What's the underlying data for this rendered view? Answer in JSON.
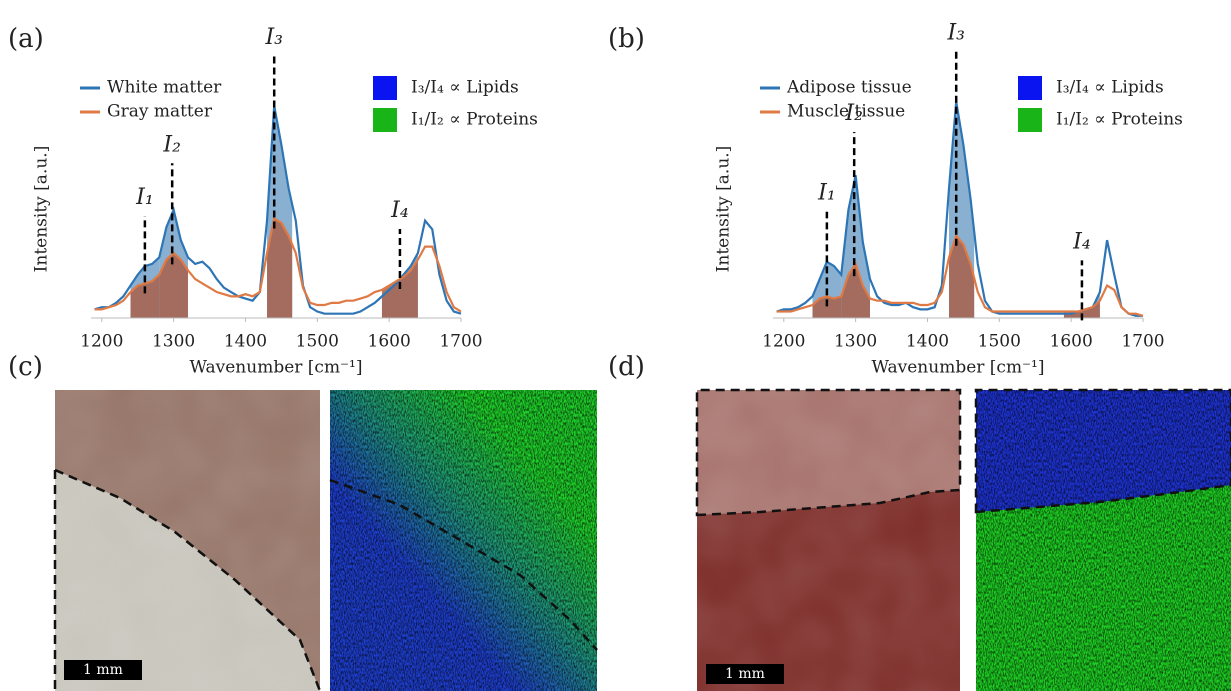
{
  "panel_labels": [
    "(a)",
    "(b)",
    "(c)",
    "(d)"
  ],
  "scale_bar_labels": [
    "1 mm",
    "1 mm"
  ],
  "chart_data": [
    {
      "type": "line",
      "xlabel": "Wavenumber [cm⁻¹]",
      "ylabel": "Intensity [a.u.]",
      "xlim": [
        1185,
        1700
      ],
      "ylim": [
        0,
        1.1
      ],
      "xticks": [
        1200,
        1300,
        1400,
        1500,
        1600,
        1700
      ],
      "x": [
        1190,
        1200,
        1210,
        1220,
        1230,
        1240,
        1250,
        1260,
        1270,
        1280,
        1290,
        1300,
        1310,
        1320,
        1330,
        1340,
        1350,
        1360,
        1370,
        1380,
        1390,
        1400,
        1410,
        1420,
        1430,
        1440,
        1450,
        1460,
        1470,
        1480,
        1490,
        1500,
        1510,
        1520,
        1530,
        1540,
        1550,
        1560,
        1570,
        1580,
        1590,
        1600,
        1610,
        1620,
        1630,
        1640,
        1650,
        1660,
        1670,
        1680,
        1690,
        1700
      ],
      "series": [
        {
          "name": "White matter",
          "color": "#2e75b6",
          "fill": "#4a86b8",
          "values": [
            0.04,
            0.05,
            0.05,
            0.07,
            0.1,
            0.15,
            0.2,
            0.24,
            0.25,
            0.28,
            0.42,
            0.5,
            0.36,
            0.28,
            0.25,
            0.26,
            0.23,
            0.18,
            0.14,
            0.12,
            0.1,
            0.09,
            0.08,
            0.12,
            0.45,
            0.98,
            0.8,
            0.6,
            0.45,
            0.15,
            0.05,
            0.03,
            0.02,
            0.02,
            0.02,
            0.02,
            0.02,
            0.03,
            0.05,
            0.07,
            0.1,
            0.13,
            0.16,
            0.2,
            0.24,
            0.3,
            0.45,
            0.41,
            0.2,
            0.08,
            0.03,
            0.02
          ]
        },
        {
          "name": "Gray matter",
          "color": "#e07a45",
          "fill": "#a8604a",
          "values": [
            0.04,
            0.04,
            0.05,
            0.06,
            0.08,
            0.12,
            0.15,
            0.16,
            0.17,
            0.2,
            0.27,
            0.3,
            0.27,
            0.22,
            0.18,
            0.16,
            0.14,
            0.12,
            0.11,
            0.1,
            0.1,
            0.11,
            0.1,
            0.12,
            0.3,
            0.46,
            0.44,
            0.38,
            0.3,
            0.14,
            0.07,
            0.06,
            0.06,
            0.07,
            0.07,
            0.08,
            0.08,
            0.09,
            0.1,
            0.12,
            0.13,
            0.15,
            0.17,
            0.19,
            0.22,
            0.27,
            0.33,
            0.33,
            0.24,
            0.12,
            0.05,
            0.03
          ]
        }
      ],
      "bands": [
        [
          1240,
          1280
        ],
        [
          1280,
          1320
        ],
        [
          1430,
          1465
        ],
        [
          1590,
          1640
        ]
      ],
      "annotations": [
        {
          "x": 1260,
          "label": "I₁"
        },
        {
          "x": 1298,
          "label": "I₂"
        },
        {
          "x": 1440,
          "label": "I₃"
        },
        {
          "x": 1615,
          "label": "I₄"
        }
      ],
      "ratio_legend": [
        {
          "label": "I₃/I₄ ∝ Lipids",
          "color": "#0a14f0"
        },
        {
          "label": "I₁/I₂ ∝ Proteins",
          "color": "#18b418"
        }
      ]
    },
    {
      "type": "line",
      "xlabel": "Wavenumber [cm⁻¹]",
      "ylabel": "Intensity [a.u.]",
      "xlim": [
        1185,
        1700
      ],
      "ylim": [
        0,
        1.1
      ],
      "xticks": [
        1200,
        1300,
        1400,
        1500,
        1600,
        1700
      ],
      "x": [
        1190,
        1200,
        1210,
        1220,
        1230,
        1240,
        1250,
        1260,
        1270,
        1280,
        1290,
        1300,
        1310,
        1320,
        1330,
        1340,
        1350,
        1360,
        1370,
        1380,
        1390,
        1400,
        1410,
        1420,
        1430,
        1440,
        1450,
        1460,
        1470,
        1480,
        1490,
        1500,
        1510,
        1520,
        1530,
        1540,
        1550,
        1560,
        1570,
        1580,
        1590,
        1600,
        1610,
        1620,
        1630,
        1640,
        1650,
        1660,
        1670,
        1680,
        1690,
        1700
      ],
      "series": [
        {
          "name": "Adipose tissue",
          "color": "#2e75b6",
          "fill": "#4a86b8",
          "values": [
            0.03,
            0.04,
            0.04,
            0.05,
            0.07,
            0.1,
            0.18,
            0.26,
            0.24,
            0.2,
            0.5,
            0.66,
            0.35,
            0.18,
            0.1,
            0.07,
            0.06,
            0.06,
            0.07,
            0.05,
            0.04,
            0.04,
            0.05,
            0.15,
            0.6,
            1.0,
            0.8,
            0.55,
            0.25,
            0.08,
            0.03,
            0.02,
            0.02,
            0.02,
            0.02,
            0.02,
            0.02,
            0.02,
            0.02,
            0.02,
            0.02,
            0.02,
            0.03,
            0.04,
            0.05,
            0.12,
            0.36,
            0.2,
            0.05,
            0.02,
            0.01,
            0.01
          ]
        },
        {
          "name": "Muscle tissue",
          "color": "#e07a45",
          "fill": "#a8604a",
          "values": [
            0.03,
            0.03,
            0.03,
            0.04,
            0.05,
            0.06,
            0.09,
            0.1,
            0.09,
            0.1,
            0.2,
            0.25,
            0.15,
            0.09,
            0.08,
            0.08,
            0.07,
            0.07,
            0.07,
            0.07,
            0.06,
            0.06,
            0.07,
            0.12,
            0.28,
            0.38,
            0.34,
            0.25,
            0.12,
            0.05,
            0.03,
            0.03,
            0.03,
            0.03,
            0.03,
            0.03,
            0.03,
            0.03,
            0.03,
            0.03,
            0.03,
            0.03,
            0.03,
            0.04,
            0.05,
            0.08,
            0.15,
            0.13,
            0.05,
            0.02,
            0.02,
            0.01
          ]
        }
      ],
      "bands": [
        [
          1240,
          1280
        ],
        [
          1280,
          1320
        ],
        [
          1430,
          1465
        ],
        [
          1590,
          1640
        ]
      ],
      "annotations": [
        {
          "x": 1260,
          "label": "I₁"
        },
        {
          "x": 1298,
          "label": "I₂"
        },
        {
          "x": 1440,
          "label": "I₃"
        },
        {
          "x": 1615,
          "label": "I₄"
        }
      ],
      "ratio_legend": [
        {
          "label": "I₃/I₄ ∝ Lipids",
          "color": "#0a14f0"
        },
        {
          "label": "I₁/I₂ ∝ Proteins",
          "color": "#18b418"
        }
      ]
    }
  ]
}
